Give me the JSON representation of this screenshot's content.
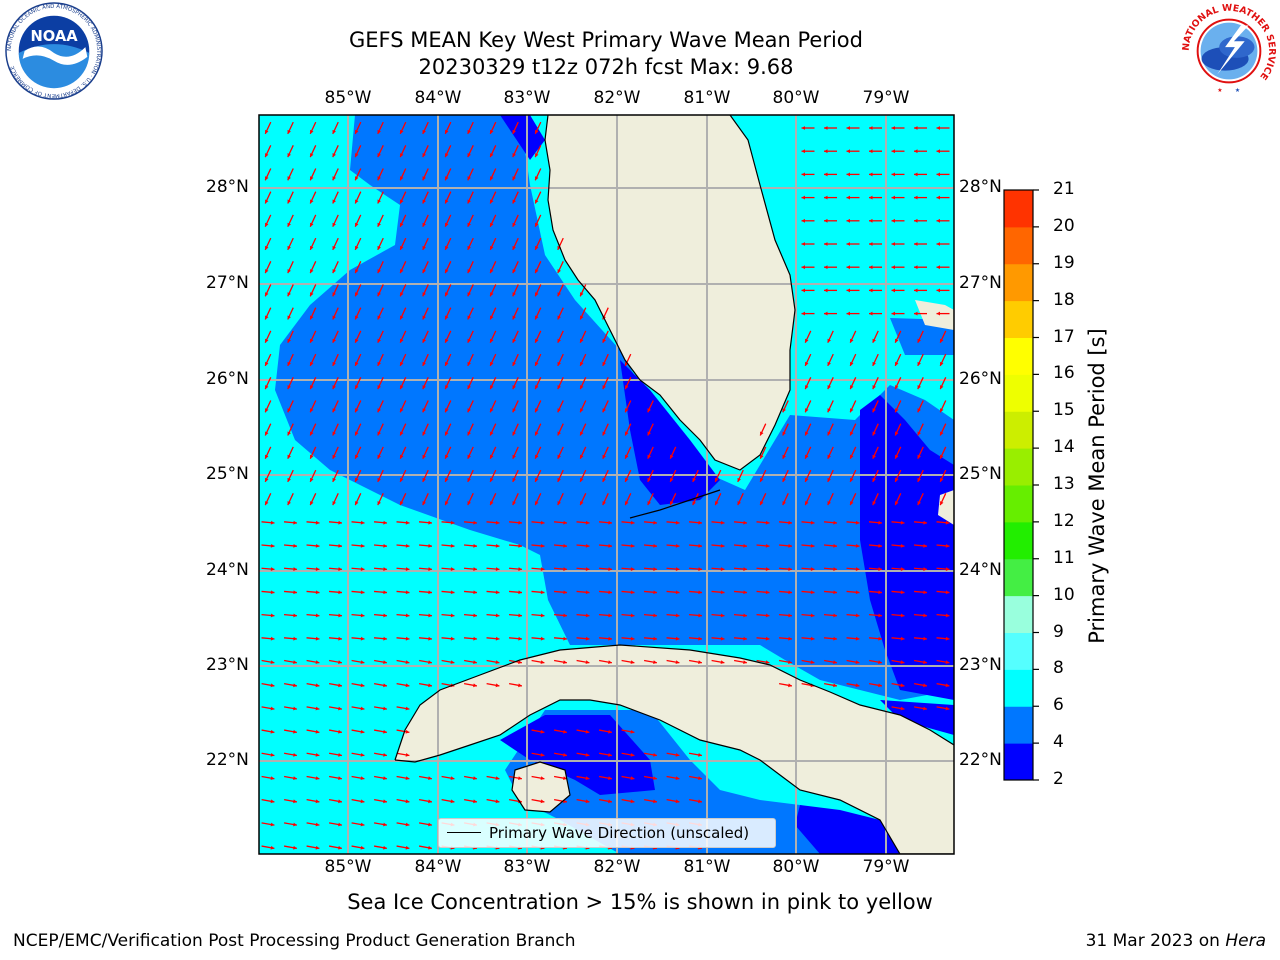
{
  "header": {
    "title_line1": "GEFS MEAN Key West Primary Wave Mean Period",
    "title_line2": "20230329 t12z 072h fcst   Max: 9.68"
  },
  "logos": {
    "noaa": {
      "text": "NOAA",
      "ring_text": "NATIONAL OCEANIC AND ATMOSPHERIC ADMINISTRATION · U.S. DEPARTMENT OF COMMERCE"
    },
    "nws": {
      "ring_text": "NATIONAL WEATHER SERVICE"
    }
  },
  "map": {
    "lon_labels": [
      "85°W",
      "84°W",
      "83°W",
      "82°W",
      "81°W",
      "80°W",
      "79°W"
    ],
    "lat_labels": [
      "28°N",
      "27°N",
      "26°N",
      "25°N",
      "24°N",
      "23°N",
      "22°N"
    ],
    "legend_label": "Primary Wave Direction (unscaled)",
    "colors": {
      "land": "#efeedc",
      "level_2_4": "#0000ff",
      "level_4_6": "#0077ff",
      "level_6_8": "#00ffff",
      "arrow": "#ff0000",
      "grid": "#b0b0b0"
    }
  },
  "colorbar": {
    "title": "Primary Wave Mean Period [s]",
    "ticks": [
      "2",
      "4",
      "6",
      "8",
      "9",
      "10",
      "11",
      "12",
      "13",
      "14",
      "15",
      "16",
      "17",
      "18",
      "19",
      "20",
      "21"
    ],
    "colors": [
      "#0000ff",
      "#0077ff",
      "#00ffff",
      "#55ffff",
      "#99ffdd",
      "#44ee44",
      "#22ee00",
      "#66ee00",
      "#99ee00",
      "#ccee00",
      "#eeff00",
      "#ffff00",
      "#ffcc00",
      "#ff9900",
      "#ff6600",
      "#ff3300",
      "#ff0000"
    ]
  },
  "subtitle": "Sea Ice Concentration > 15% is shown in pink to yellow",
  "footer": {
    "left": "NCEP/EMC/Verification Post Processing Product Generation Branch",
    "date": "31 Mar 2023 on ",
    "machine": "Hera"
  }
}
